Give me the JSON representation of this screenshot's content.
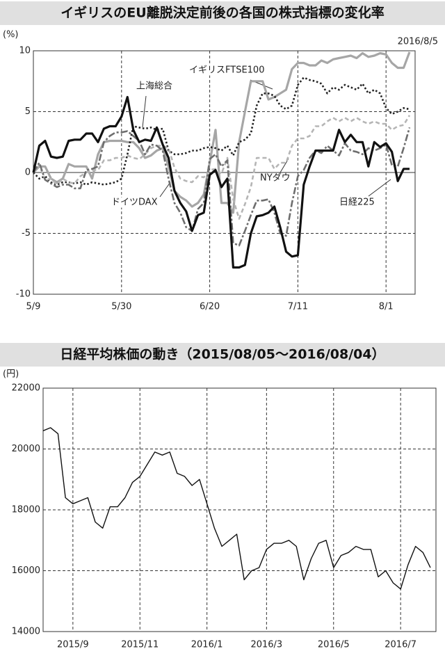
{
  "chart_data": [
    {
      "type": "line",
      "title": "イギリスのEU離脱決定前後の各国の株式指標の変化率",
      "y_label": "(%)",
      "annotation": "2016/8/5",
      "categories": [
        "5/9",
        null,
        null,
        null,
        null,
        null,
        null,
        null,
        null,
        null,
        null,
        null,
        null,
        null,
        null,
        "5/30",
        null,
        null,
        null,
        null,
        null,
        null,
        null,
        null,
        null,
        null,
        null,
        null,
        null,
        null,
        "6/20",
        null,
        null,
        null,
        null,
        null,
        null,
        null,
        null,
        null,
        null,
        null,
        null,
        null,
        null,
        "7/11",
        null,
        null,
        null,
        null,
        null,
        null,
        null,
        null,
        null,
        null,
        null,
        null,
        null,
        null,
        "8/1",
        null,
        null,
        null,
        null
      ],
      "ylim": [
        -10,
        10
      ],
      "yticks": [
        -10,
        -5,
        0,
        5,
        10
      ],
      "grid": true,
      "series": [
        {
          "name": "イギリスFTSE100",
          "color": "#a6a6a6",
          "line_style": "solid",
          "line_width": 3.2,
          "values": [
            0,
            0.5,
            0.5,
            -0.5,
            -0.8,
            -0.5,
            0.7,
            0.5,
            0.5,
            0.5,
            -0.5,
            1.5,
            2.5,
            2.6,
            2.6,
            2.6,
            2.5,
            2.5,
            2.0,
            1.2,
            1.4,
            1.8,
            2,
            0.5,
            -1.5,
            -2,
            -2.3,
            -2.8,
            -2.5,
            -1.8,
            0.8,
            3.5,
            -2.5,
            -2.5,
            -3.3,
            2.5,
            5,
            7.5,
            7.5,
            7.5,
            6,
            6.2,
            6.5,
            6.8,
            8.5,
            9,
            9,
            8.8,
            8.8,
            9.2,
            9,
            9.3,
            9.4,
            9.5,
            9.6,
            9.4,
            9.8,
            9.5,
            9.6,
            9.8,
            9.7,
            9,
            8.6,
            8.6,
            9.9
          ]
        },
        {
          "name": "上海総合",
          "color": "#222222",
          "line_style": "dotted",
          "line_width": 2.6,
          "values": [
            0,
            -0.5,
            -0.3,
            -0.8,
            -1,
            -0.8,
            -0.8,
            -0.9,
            -0.8,
            -1,
            -0.8,
            -0.9,
            -1,
            -0.9,
            -0.8,
            -0.5,
            1.5,
            3.8,
            3.7,
            3.6,
            3.7,
            3.5,
            3.6,
            1.8,
            1.5,
            1.5,
            1.6,
            1.8,
            1.8,
            2,
            2.1,
            2,
            1.8,
            2.2,
            1.4,
            2.5,
            2.7,
            3.2,
            5.5,
            6.5,
            6.5,
            6.3,
            5.5,
            5.2,
            5.5,
            7.2,
            7.8,
            7.6,
            7.5,
            7.3,
            6.5,
            7,
            6.8,
            7.2,
            7,
            6.8,
            7.3,
            6.5,
            6.8,
            6.5,
            5.3,
            4.8,
            5,
            5.3,
            5.2
          ]
        },
        {
          "name": "NYダウ",
          "color": "#b5b5b5",
          "line_style": "dashed",
          "line_width": 2.6,
          "values": [
            0,
            0.6,
            -0.6,
            -0.5,
            -1,
            -0.5,
            -0.8,
            -0.9,
            -0.3,
            0,
            0.2,
            0.2,
            1,
            1,
            1.2,
            1.2,
            1.4,
            1.2,
            1.1,
            1.5,
            2,
            2.2,
            2.2,
            2,
            0.4,
            -0.5,
            -0.7,
            -0.8,
            -0.3,
            -0.4,
            0.2,
            0.3,
            -0.1,
            1.2,
            -2.2,
            -3.8,
            -2.6,
            -1.2,
            1.2,
            1.2,
            1.2,
            0.3,
            0.8,
            0.8,
            2.2,
            2.8,
            2.8,
            3,
            3.8,
            3.8,
            4.2,
            4.5,
            4.2,
            4.5,
            4.2,
            4.5,
            4.2,
            4,
            4.2,
            4,
            4,
            3.5,
            3.8,
            3.9,
            4.7
          ]
        },
        {
          "name": "ドイツDAX",
          "color": "#6e6e6e",
          "line_style": "dashdot",
          "line_width": 2.6,
          "values": [
            0,
            0.8,
            -0.6,
            -0.9,
            -1.2,
            -1,
            -1,
            -1.3,
            -1.3,
            0.2,
            0.3,
            0.5,
            2.5,
            3,
            3.3,
            3.3,
            3.4,
            3,
            2.6,
            1.5,
            2.3,
            2.2,
            1.8,
            -0.5,
            -2.5,
            -3.3,
            -4.5,
            -4.8,
            -3,
            -2.5,
            1.1,
            1.5,
            0.5,
            1,
            -5.8,
            -6,
            -4.8,
            -3.5,
            -2.3,
            -2.3,
            -2.2,
            -3.3,
            -5,
            -5.2,
            -2.5,
            -0.3,
            0.2,
            1.2,
            1.8,
            1.6,
            2.2,
            1.8,
            1.4,
            2.4,
            1.8,
            1.7,
            1.5,
            2,
            1.8,
            2,
            2.3,
            0.6,
            0.5,
            2,
            3.7
          ]
        },
        {
          "name": "日経225",
          "color": "#111111",
          "line_style": "solid",
          "line_width": 3.2,
          "values": [
            0,
            2.2,
            2.6,
            1.3,
            1.2,
            1.3,
            2.6,
            2.7,
            2.7,
            3.2,
            3.2,
            2.5,
            3.6,
            3.8,
            3.8,
            4.6,
            6.2,
            3.5,
            2.5,
            2.7,
            2.6,
            3.7,
            2.3,
            1.2,
            -1.5,
            -2.5,
            -3.2,
            -4.8,
            -3.5,
            -3.3,
            -0.2,
            0.2,
            -1.2,
            -0.5,
            -7.8,
            -7.8,
            -7.6,
            -5,
            -3.6,
            -3.5,
            -3.3,
            -2.8,
            -4.5,
            -6.5,
            -6.9,
            -6.8,
            -1,
            0.5,
            1.8,
            1.8,
            1.8,
            1.8,
            3.5,
            2.5,
            3.1,
            2.5,
            2.5,
            0.5,
            2.5,
            2.1,
            2.4,
            1.7,
            -0.7,
            0.3,
            0.3
          ]
        }
      ]
    },
    {
      "type": "line",
      "title": "日経平均株価の動き（2015/08/05～2016/08/04）",
      "y_label": "(円)",
      "categories": [
        null,
        null,
        null,
        null,
        "2015/9",
        null,
        null,
        null,
        null,
        null,
        null,
        null,
        null,
        "2015/11",
        null,
        null,
        null,
        null,
        null,
        null,
        null,
        null,
        "2016/1",
        null,
        null,
        null,
        null,
        null,
        null,
        null,
        "2016/3",
        null,
        null,
        null,
        null,
        null,
        null,
        null,
        null,
        "2016/5",
        null,
        null,
        null,
        null,
        null,
        null,
        null,
        null,
        "2016/7",
        null,
        null,
        null,
        null
      ],
      "ylim": [
        14000,
        22000
      ],
      "yticks": [
        14000,
        16000,
        18000,
        20000,
        22000
      ],
      "grid": true,
      "color": "#111111",
      "values": [
        20600,
        20700,
        20500,
        18400,
        18200,
        18300,
        18400,
        17600,
        17400,
        18100,
        18100,
        18400,
        18900,
        19100,
        19500,
        19900,
        19800,
        19900,
        19200,
        19100,
        18800,
        19000,
        18200,
        17400,
        16800,
        17000,
        17200,
        15700,
        16000,
        16100,
        16700,
        16900,
        16900,
        17000,
        16800,
        15700,
        16400,
        16900,
        17000,
        16100,
        16500,
        16600,
        16800,
        16700,
        16700,
        15800,
        16000,
        15600,
        15400,
        16200,
        16800,
        16600,
        16100
      ]
    }
  ]
}
